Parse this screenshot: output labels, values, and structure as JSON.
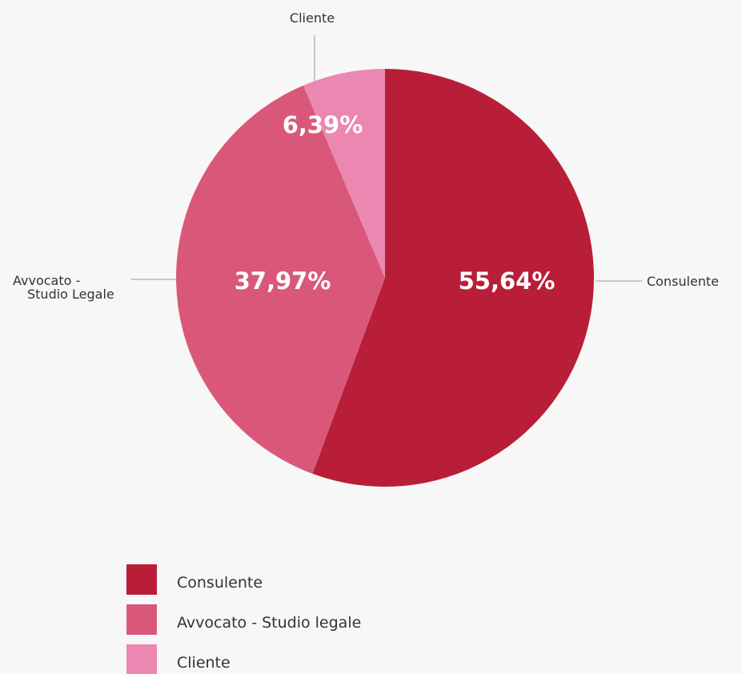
{
  "chart_data": {
    "type": "pie",
    "title": "",
    "categories": [
      "Consulente",
      "Avvocato - Studio Legale",
      "Cliente"
    ],
    "values": [
      55.64,
      37.97,
      6.39
    ],
    "value_labels": [
      "55,64%",
      "37,97%",
      "6,39%"
    ],
    "colors": [
      "#b91e39",
      "#d9587a",
      "#eb87b0"
    ],
    "callout_labels": {
      "consulente": "Consulente",
      "avvocato_line1": "Avvocato -",
      "avvocato_line2": "Studio Legale",
      "cliente": "Cliente"
    },
    "legend": {
      "placement": "bottom-left",
      "entries": [
        {
          "label": "Consulente",
          "color": "#b91e39"
        },
        {
          "label": "Avvocato - Studio legale",
          "color": "#d9587a"
        },
        {
          "label": "Cliente",
          "color": "#eb87b0"
        }
      ]
    }
  }
}
